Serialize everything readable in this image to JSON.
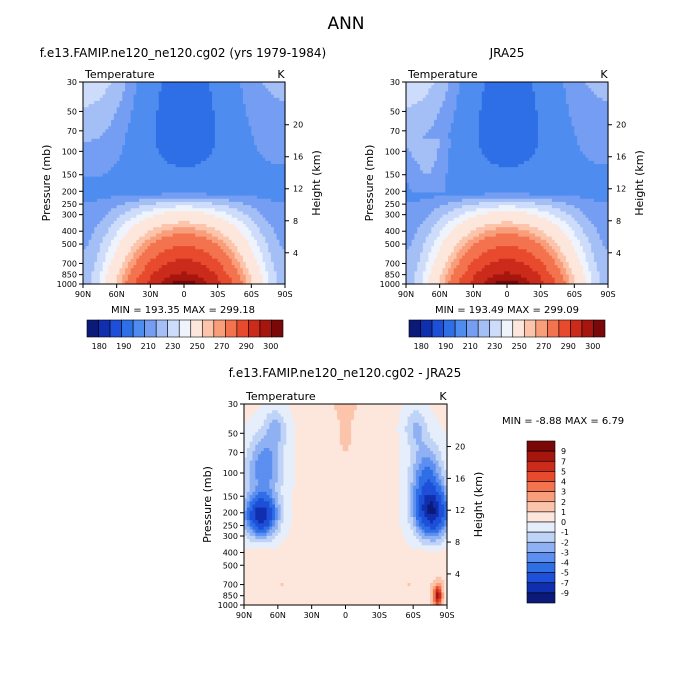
{
  "page_title": "ANN",
  "panels": [
    {
      "id": "model",
      "title": "f.e13.FAMIP.ne120_ne120.cg02 (yrs 1979-1984)",
      "left_label": "Temperature",
      "right_label": "K",
      "minmax": "MIN = 193.35   MAX = 299.18"
    },
    {
      "id": "obs",
      "title": "JRA25",
      "left_label": "Temperature",
      "right_label": "K",
      "minmax": "MIN = 193.49   MAX = 299.09"
    },
    {
      "id": "diff",
      "title": "f.e13.FAMIP.ne120_ne120.cg02 - JRA25",
      "left_label": "Temperature",
      "right_label": "K",
      "minmax": "MIN =   -8.88   MAX =    6.79"
    }
  ],
  "axes": {
    "ylabel": "Pressure (mb)",
    "ylabel_right": "Height (km)",
    "pressure_ticks": [
      "30",
      "50",
      "70",
      "100",
      "150",
      "200",
      "250",
      "300",
      "400",
      "500",
      "700",
      "850",
      "1000"
    ],
    "height_ticks": [
      "20",
      "16",
      "12",
      "8",
      "4"
    ],
    "lat_ticks": [
      "90N",
      "60N",
      "30N",
      "0",
      "30S",
      "60S",
      "90S"
    ]
  },
  "colorbars": {
    "temperature": {
      "labels": [
        "180",
        "190",
        "210",
        "230",
        "250",
        "270",
        "290",
        "300"
      ],
      "colors": [
        "#0b1a78",
        "#102fae",
        "#1d4fd8",
        "#2f6fe6",
        "#4f8cf0",
        "#759ef3",
        "#a4bff6",
        "#ccdcfa",
        "#eff4fc",
        "#fde7dc",
        "#fcc4ab",
        "#f99e7b",
        "#f4734f",
        "#e84a2e",
        "#cb2b1b",
        "#a6160f",
        "#7a0808"
      ]
    },
    "difference": {
      "labels": [
        "9",
        "7",
        "5",
        "4",
        "3",
        "2",
        "1",
        "0",
        "-1",
        "-2",
        "-3",
        "-4",
        "-5",
        "-7",
        "-9"
      ],
      "colors": [
        "#7a0808",
        "#a6160f",
        "#cb2b1b",
        "#e84a2e",
        "#f4734f",
        "#f99e7b",
        "#fcc4ab",
        "#fde7dc",
        "#e6eefb",
        "#bfd3f7",
        "#8fb1f3",
        "#5d8ff0",
        "#2f6fe6",
        "#1d4fd8",
        "#102fae",
        "#0b1a78"
      ]
    }
  },
  "chart_data": [
    {
      "type": "heatmap",
      "title": "f.e13.FAMIP.ne120_ne120.cg02 (yrs 1979-1984)",
      "variable": "Temperature",
      "units": "K",
      "xlabel": "",
      "ylabel": "Pressure (mb)",
      "y2label": "Height (km)",
      "x": [
        "90N",
        "60N",
        "30N",
        "0",
        "30S",
        "60S",
        "90S"
      ],
      "y": [
        30,
        50,
        70,
        100,
        150,
        200,
        250,
        300,
        400,
        500,
        700,
        850,
        1000
      ],
      "min": 193.35,
      "max": 299.18
    },
    {
      "type": "heatmap",
      "title": "JRA25",
      "variable": "Temperature",
      "units": "K",
      "xlabel": "",
      "ylabel": "Pressure (mb)",
      "y2label": "Height (km)",
      "x": [
        "90N",
        "60N",
        "30N",
        "0",
        "30S",
        "60S",
        "90S"
      ],
      "y": [
        30,
        50,
        70,
        100,
        150,
        200,
        250,
        300,
        400,
        500,
        700,
        850,
        1000
      ],
      "min": 193.49,
      "max": 299.09
    },
    {
      "type": "heatmap",
      "title": "f.e13.FAMIP.ne120_ne120.cg02 - JRA25",
      "variable": "Temperature",
      "units": "K",
      "xlabel": "",
      "ylabel": "Pressure (mb)",
      "y2label": "Height (km)",
      "x": [
        "90N",
        "60N",
        "30N",
        "0",
        "30S",
        "60S",
        "90S"
      ],
      "y": [
        30,
        50,
        70,
        100,
        150,
        200,
        250,
        300,
        400,
        500,
        700,
        850,
        1000
      ],
      "min": -8.88,
      "max": 6.79
    }
  ]
}
